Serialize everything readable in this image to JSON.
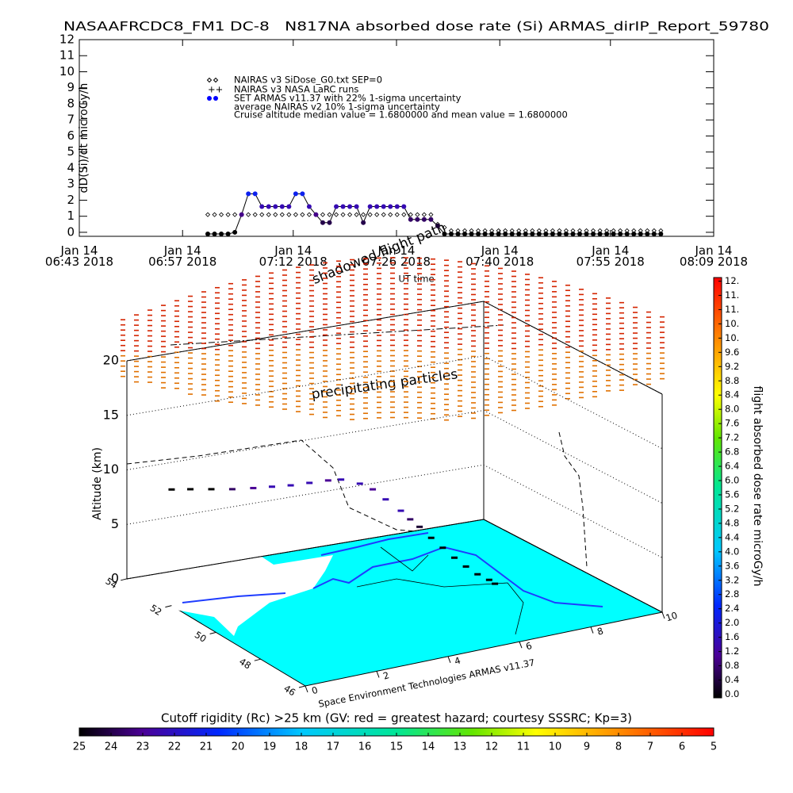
{
  "chart_data": [
    {
      "type": "scatter",
      "title": "NASAAFRCDC8_FM1 DC-8   N817NA absorbed dose rate (Si) ARMAS_dirIP_Report_59780",
      "y_label": "dD(Si)/dt microGy/h",
      "x_label": "UT time",
      "xlim": [
        "06:43",
        "08:09"
      ],
      "xticks": [
        {
          "value": "06:43",
          "label": "Jan 14\n06:43 2018"
        },
        {
          "value": "06:57",
          "label": "Jan 14\n06:57 2018"
        },
        {
          "value": "07:12",
          "label": "Jan 14\n07:12 2018"
        },
        {
          "value": "07:26",
          "label": "Jan 14\n07:26 2018"
        },
        {
          "value": "07:40",
          "label": "Jan 14\n07:40 2018"
        },
        {
          "value": "07:55",
          "label": "Jan 14\n07:55 2018"
        },
        {
          "value": "08:09",
          "label": "Jan 14\n08:09 2018"
        }
      ],
      "ylim": [
        -0.25,
        12
      ],
      "yticks": [
        0,
        1,
        2,
        3,
        4,
        5,
        6,
        7,
        8,
        9,
        10,
        11,
        12
      ],
      "x": [
        "07:00:25",
        "07:01:20",
        "07:02:15",
        "07:03:10",
        "07:04:05",
        "07:05:00",
        "07:05:55",
        "07:06:50",
        "07:07:45",
        "07:08:40",
        "07:09:35",
        "07:10:30",
        "07:11:25",
        "07:12:20",
        "07:13:15",
        "07:14:10",
        "07:15:05",
        "07:16:00",
        "07:16:55",
        "07:17:50",
        "07:18:45",
        "07:19:40",
        "07:20:35",
        "07:21:30",
        "07:22:25",
        "07:23:20",
        "07:24:15",
        "07:25:10",
        "07:26:05",
        "07:27:00",
        "07:27:55",
        "07:28:50",
        "07:29:45",
        "07:30:40",
        "07:31:35",
        "07:32:30",
        "07:33:25",
        "07:34:20",
        "07:35:15",
        "07:36:10",
        "07:37:05",
        "07:38:00",
        "07:38:55",
        "07:39:50",
        "07:40:45",
        "07:41:40",
        "07:42:35",
        "07:43:30",
        "07:44:25",
        "07:45:20",
        "07:46:15",
        "07:47:10",
        "07:48:05",
        "07:49:00",
        "07:49:55",
        "07:50:50",
        "07:51:45",
        "07:52:40",
        "07:53:35",
        "07:54:30",
        "07:55:25",
        "07:56:20",
        "07:57:15",
        "07:58:10",
        "07:59:05",
        "08:00:00",
        "08:00:55",
        "08:01:50"
      ],
      "series": [
        {
          "name": "NAIRAS v3 SiDose_G0.txt SEP=0",
          "color": "#000000",
          "marker": "diamond",
          "values": [
            1.1,
            1.1,
            1.1,
            1.1,
            1.1,
            1.1,
            1.1,
            1.1,
            1.1,
            1.1,
            1.1,
            1.1,
            1.1,
            1.1,
            1.1,
            1.1,
            1.1,
            1.1,
            1.1,
            1.1,
            1.1,
            1.1,
            1.1,
            1.1,
            1.1,
            1.1,
            1.1,
            1.1,
            1.1,
            1.1,
            1.1,
            1.1,
            1.1,
            1.1,
            0.5,
            0.3,
            0.1,
            0.1,
            0.1,
            0.1,
            0.1,
            0.1,
            0.1,
            0.1,
            0.1,
            0.1,
            0.1,
            0.1,
            0.1,
            0.1,
            0.1,
            0.1,
            0.1,
            0.1,
            0.1,
            0.1,
            0.1,
            0.1,
            0.1,
            0.1,
            0.1,
            0.1,
            0.1,
            0.1,
            0.1,
            0.1,
            0.1,
            0.1
          ]
        },
        {
          "name": "SET ARMAS v11.37 with 22% 1-sigma uncertainty",
          "color": "#0000ff",
          "marker": "circle",
          "values": [
            -0.1,
            -0.1,
            -0.1,
            -0.1,
            0,
            1.1,
            2.4,
            2.4,
            1.6,
            1.6,
            1.6,
            1.6,
            1.6,
            2.4,
            2.4,
            1.6,
            1.1,
            0.6,
            0.6,
            1.6,
            1.6,
            1.6,
            1.6,
            0.6,
            1.6,
            1.6,
            1.6,
            1.6,
            1.6,
            1.6,
            0.8,
            0.8,
            0.8,
            0.8,
            0.4,
            -0.1,
            -0.1,
            -0.1,
            -0.1,
            -0.1,
            -0.1,
            -0.1,
            -0.1,
            -0.1,
            -0.1,
            -0.1,
            -0.1,
            -0.1,
            -0.1,
            -0.1,
            -0.1,
            -0.1,
            -0.1,
            -0.1,
            -0.1,
            -0.1,
            -0.1,
            -0.1,
            -0.1,
            -0.1,
            -0.1,
            -0.1,
            -0.1,
            -0.1,
            -0.1,
            -0.1,
            -0.1,
            -0.1
          ]
        }
      ],
      "legend_notes": [
        "NAIRAS v3 NASA LaRC runs",
        "average NAIRAS v2 10% 1-sigma uncertainty"
      ],
      "annotation": "Cruise altitude median value = 1.6800000 and mean value = 1.6800000"
    },
    {
      "type": "path3d",
      "z_label": "Altitude (km)",
      "zlim": [
        0,
        20
      ],
      "zticks": [
        0,
        5,
        10,
        15,
        20
      ],
      "xticks": [
        0,
        2,
        4,
        6,
        8,
        10
      ],
      "yticks": [
        54,
        52,
        50,
        48,
        46
      ],
      "annotations": [
        "shadowed flight path",
        "precipitating particles",
        "Space Environment Technologies ARMAS v11.37"
      ],
      "x": [
        1.0,
        1.4,
        1.8,
        2.2,
        2.6,
        3.0,
        3.4,
        3.8,
        4.2,
        4.5,
        4.9,
        5.2,
        5.5,
        5.8,
        6.0,
        6.2,
        6.4,
        6.6,
        6.8,
        7.0,
        7.2,
        7.4,
        7.5
      ],
      "y": [
        53.6,
        53.4,
        53.1,
        52.8,
        52.5,
        52.3,
        52.1,
        51.9,
        51.7,
        51.6,
        51.4,
        51.3,
        51.2,
        51.0,
        50.9,
        50.8,
        50.6,
        50.4,
        50.2,
        50.0,
        49.8,
        49.6,
        49.5
      ],
      "z": [
        8.0,
        8.0,
        8.1,
        8.2,
        8.4,
        8.5,
        8.6,
        8.8,
        9.0,
        9.0,
        8.6,
        8.0,
        7.0,
        6.0,
        5.2,
        4.5,
        3.6,
        2.8,
        2.0,
        1.3,
        0.7,
        0.3,
        0
      ],
      "dose": [
        0,
        0,
        0,
        0.8,
        1.2,
        1.6,
        1.6,
        1.6,
        1.2,
        1.6,
        1.6,
        1.2,
        1.6,
        1.6,
        0.8,
        0.4,
        0,
        0,
        0,
        0,
        0,
        0,
        0
      ],
      "colorbar": {
        "label": "flight absorbed dose rate microGy/h",
        "lim": [
          -0.1,
          11.7
        ],
        "ticks": [
          {
            "value": 0,
            "label": "0.0"
          },
          0.4,
          0.8,
          1.2,
          1.6,
          {
            "value": 2,
            "label": "2.0"
          },
          2.4,
          2.8,
          3.2,
          3.6,
          {
            "value": 4,
            "label": "4.0"
          },
          4.4,
          4.8,
          5.2,
          5.6,
          {
            "value": 6,
            "label": "6.0"
          },
          6.4,
          6.8,
          7.2,
          7.6,
          {
            "value": 8,
            "label": "8.0"
          },
          8.4,
          8.8,
          9.2,
          9.6,
          {
            "value": 10,
            "label": "10."
          },
          {
            "value": 10.4,
            "label": "10."
          },
          {
            "value": 10.8,
            "label": "11."
          },
          {
            "value": 11.2,
            "label": "11."
          },
          {
            "value": 11.6,
            "label": "12."
          }
        ]
      }
    },
    {
      "type": "colorbar",
      "title": "Cutoff rigidity (Rc) >25 km (GV: red = greatest hazard; courtesy SSSRC; Kp=3)",
      "xlim": [
        25,
        5
      ],
      "xticks": [
        25,
        24,
        23,
        22,
        21,
        20,
        19,
        18,
        17,
        16,
        15,
        14,
        13,
        12,
        11,
        10,
        9,
        8,
        7,
        6,
        5
      ]
    }
  ]
}
